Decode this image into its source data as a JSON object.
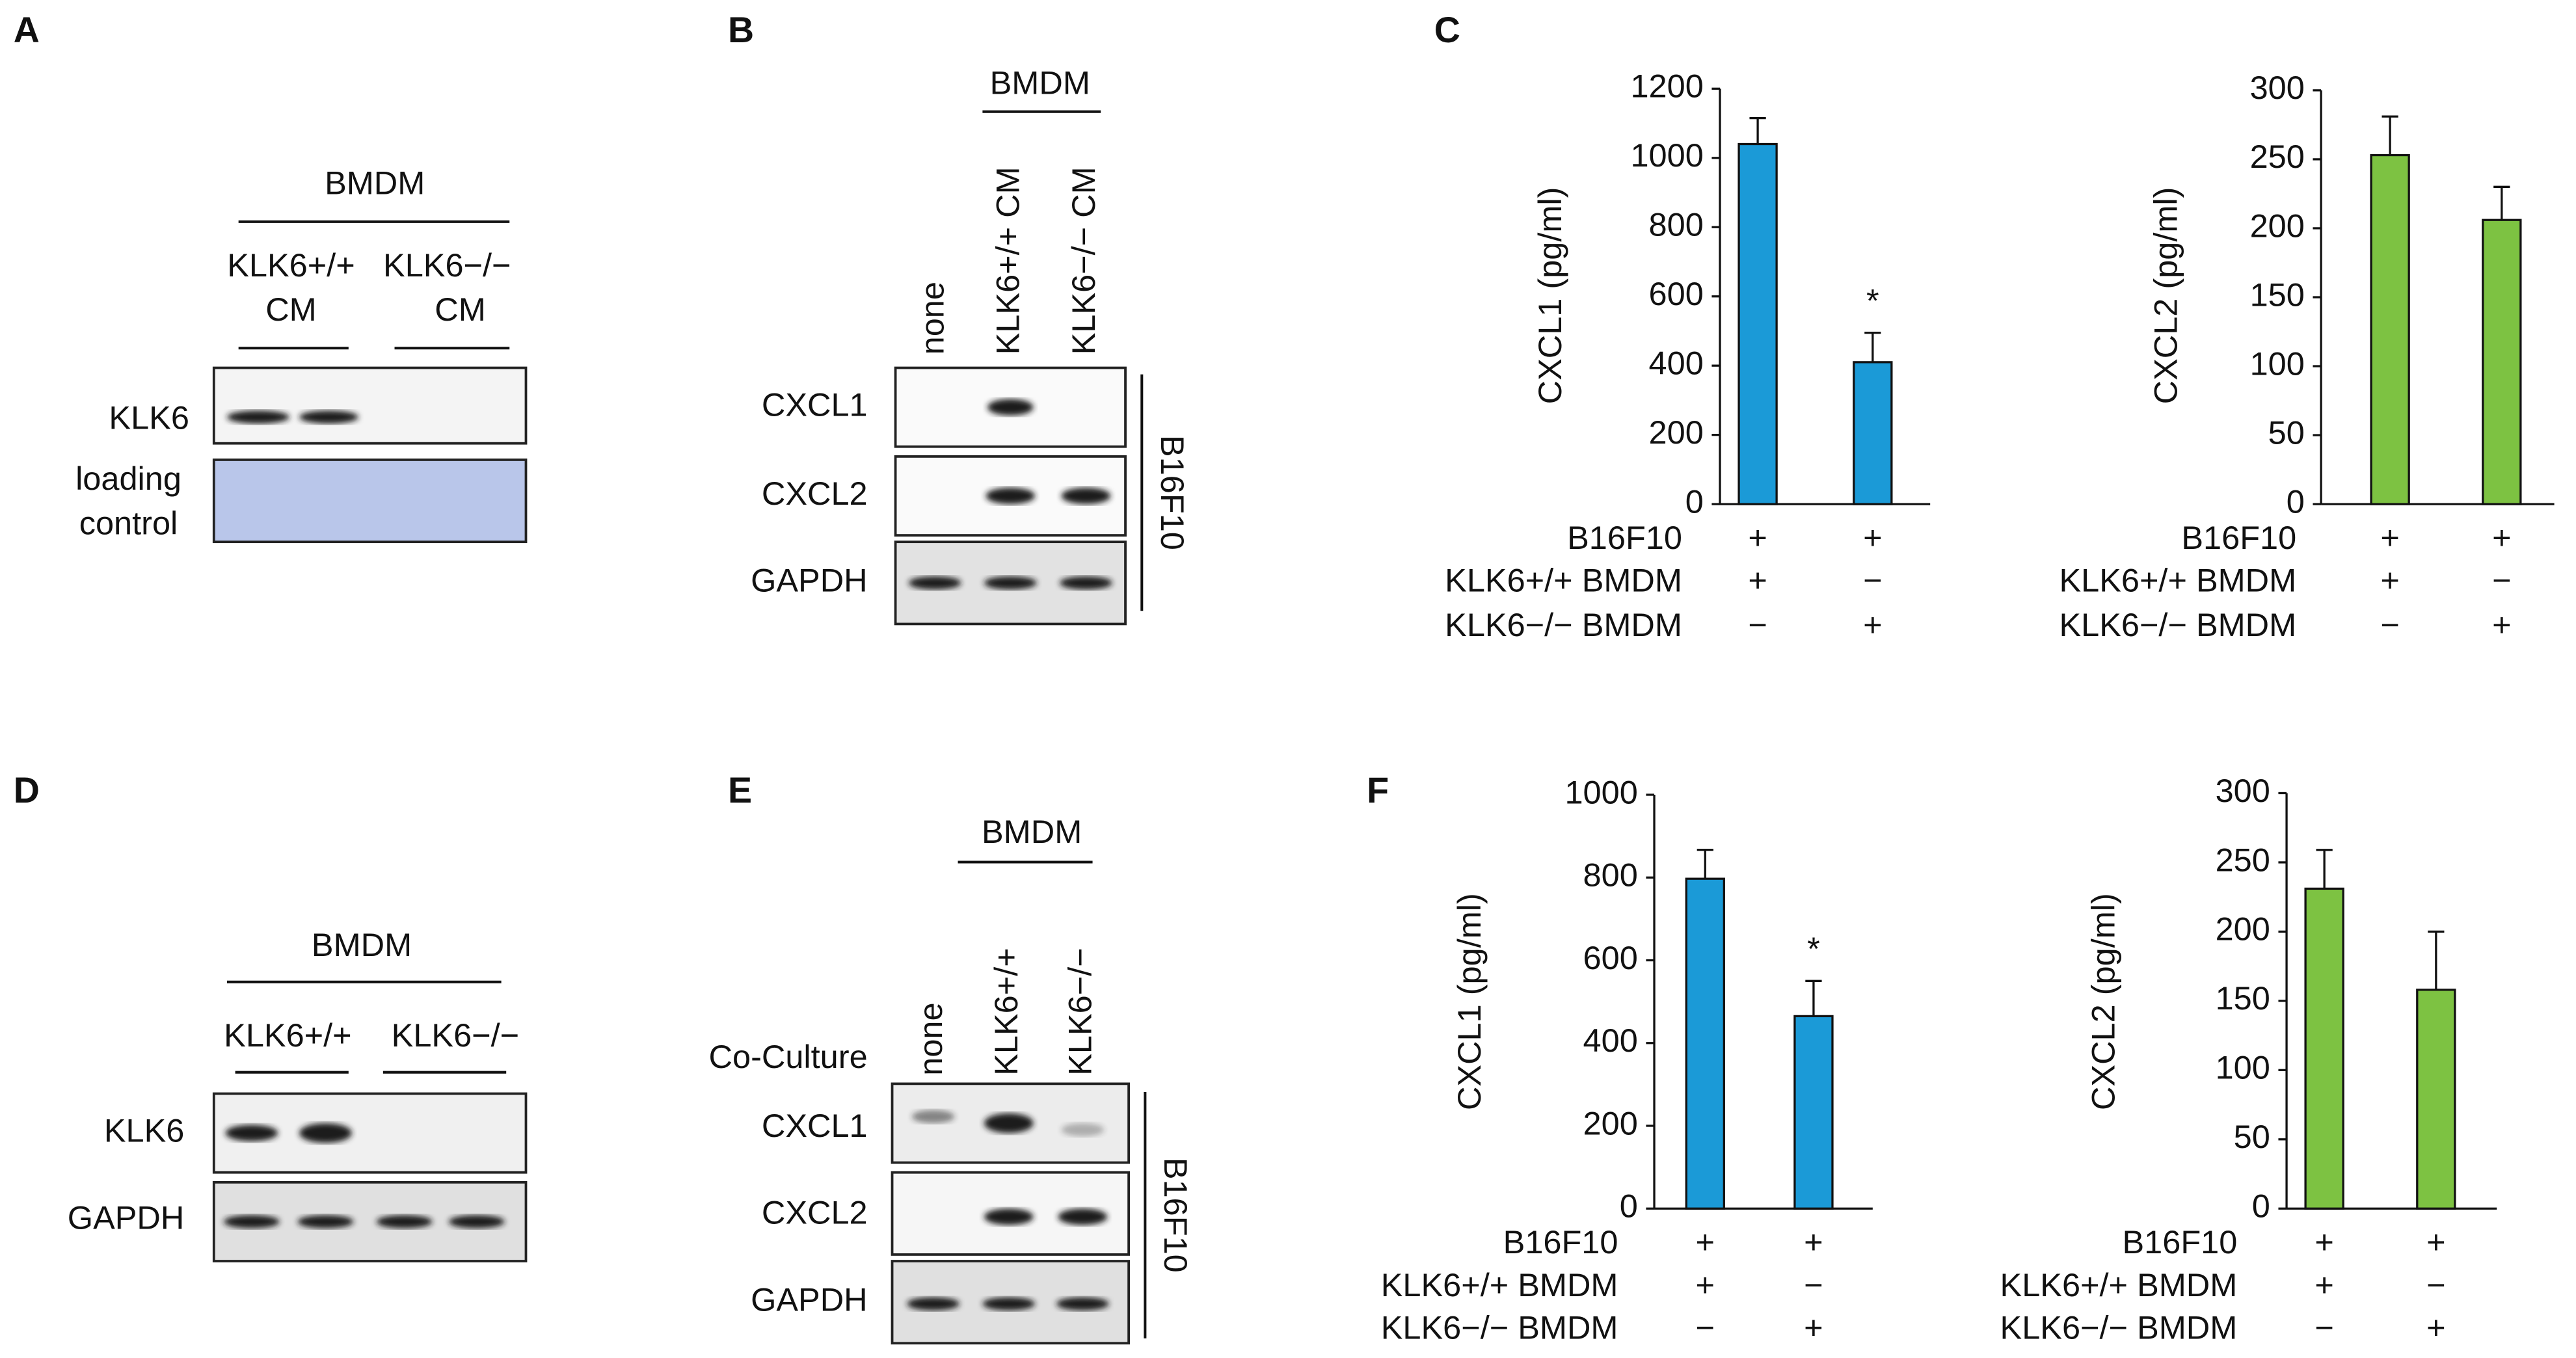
{
  "panel_labels": [
    "A",
    "B",
    "C",
    "D",
    "E",
    "F"
  ],
  "blots": {
    "a": {
      "group": "BMDM",
      "lanes": [
        [
          "KLK6+/+",
          "CM"
        ],
        [
          "KLK6−/−",
          "CM"
        ]
      ],
      "rows": [
        [
          "KLK6"
        ],
        [
          "loading",
          "control"
        ]
      ]
    },
    "b": {
      "group": "BMDM",
      "lanes": [
        "none",
        "KLK6+/+ CM",
        "KLK6−/− CM"
      ],
      "rows": [
        "CXCL1",
        "CXCL2",
        "GAPDH"
      ],
      "cells": "B16F10"
    },
    "d": {
      "group": "BMDM",
      "lanes": [
        "KLK6+/+",
        "KLK6−/−"
      ],
      "rows": [
        "KLK6",
        "GAPDH"
      ]
    },
    "e": {
      "group": "BMDM",
      "condition": "Co-Culture",
      "lanes": [
        "none",
        "KLK6+/+",
        "KLK6−/−"
      ],
      "rows": [
        "CXCL1",
        "CXCL2",
        "GAPDH"
      ],
      "cells": "B16F10"
    }
  },
  "chart_data": [
    {
      "type": "bar",
      "ylabel": "CXCL1 (pg/ml)",
      "values": [
        1040,
        410
      ],
      "errors": [
        75,
        85
      ],
      "color": "#1b9ad7",
      "annotations": [
        {
          "index": 1,
          "text": "*"
        }
      ],
      "ylim": [
        0,
        1200
      ],
      "yticks": [
        0,
        200,
        400,
        600,
        800,
        1000,
        1200
      ],
      "conditions": [
        {
          "label": "B16F10",
          "signs": [
            "+",
            "+"
          ]
        },
        {
          "label": "KLK6+/+ BMDM",
          "signs": [
            "+",
            "−"
          ]
        },
        {
          "label": "KLK6−/− BMDM",
          "signs": [
            "−",
            "+"
          ]
        }
      ]
    },
    {
      "type": "bar",
      "ylabel": "CXCL2 (pg/ml)",
      "values": [
        253,
        206
      ],
      "errors": [
        28,
        24
      ],
      "color": "#7dc242",
      "annotations": [],
      "ylim": [
        0,
        300
      ],
      "yticks": [
        0,
        50,
        100,
        150,
        200,
        250,
        300
      ],
      "conditions": [
        {
          "label": "B16F10",
          "signs": [
            "+",
            "+"
          ]
        },
        {
          "label": "KLK6+/+ BMDM",
          "signs": [
            "+",
            "−"
          ]
        },
        {
          "label": "KLK6−/− BMDM",
          "signs": [
            "−",
            "+"
          ]
        }
      ]
    },
    {
      "type": "bar",
      "ylabel": "CXCL1 (pg/ml)",
      "values": [
        797,
        465
      ],
      "errors": [
        70,
        85
      ],
      "color": "#1b9ad7",
      "annotations": [
        {
          "index": 1,
          "text": "*"
        }
      ],
      "ylim": [
        0,
        1000
      ],
      "yticks": [
        0,
        200,
        400,
        600,
        800,
        1000
      ],
      "conditions": [
        {
          "label": "B16F10",
          "signs": [
            "+",
            "+"
          ]
        },
        {
          "label": "KLK6+/+ BMDM",
          "signs": [
            "+",
            "−"
          ]
        },
        {
          "label": "KLK6−/− BMDM",
          "signs": [
            "−",
            "+"
          ]
        }
      ]
    },
    {
      "type": "bar",
      "ylabel": "CXCL2 (pg/ml)",
      "values": [
        231,
        158
      ],
      "errors": [
        28,
        42
      ],
      "color": "#7dc242",
      "annotations": [],
      "ylim": [
        0,
        300
      ],
      "yticks": [
        0,
        50,
        100,
        150,
        200,
        250,
        300
      ],
      "conditions": [
        {
          "label": "B16F10",
          "signs": [
            "+",
            "+"
          ]
        },
        {
          "label": "KLK6+/+ BMDM",
          "signs": [
            "+",
            "−"
          ]
        },
        {
          "label": "KLK6−/− BMDM",
          "signs": [
            "−",
            "+"
          ]
        }
      ]
    }
  ]
}
